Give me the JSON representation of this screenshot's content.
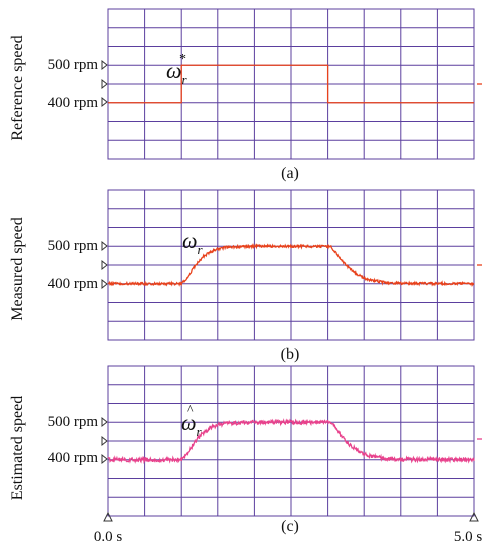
{
  "colors": {
    "grid": "#5b3f9e",
    "reference": "#e8421c",
    "measured": "#e8421c",
    "estimated": "#e8428c"
  },
  "chart_data": [
    {
      "type": "line",
      "panel_label": "(a)",
      "ylabel": "Reference speed",
      "ytick_labels": [
        "500 rpm",
        "400 rpm"
      ],
      "yticks": [
        500,
        400
      ],
      "xlim": [
        0,
        5
      ],
      "ylim": [
        250,
        650
      ],
      "series": [
        {
          "name": "ω*r",
          "symbol": "ω",
          "superscript": "*",
          "subscript": "r",
          "x": [
            0,
            1.0,
            1.0,
            3.0,
            3.0,
            5.0
          ],
          "y": [
            400,
            400,
            500,
            500,
            400,
            400
          ]
        }
      ]
    },
    {
      "type": "line",
      "panel_label": "(b)",
      "ylabel": "Measured speed",
      "ytick_labels": [
        "500 rpm",
        "400 rpm"
      ],
      "yticks": [
        500,
        400
      ],
      "xlim": [
        0,
        5
      ],
      "ylim": [
        250,
        650
      ],
      "series": [
        {
          "name": "ωr",
          "symbol": "ω",
          "subscript": "r",
          "x": [
            0,
            1.0,
            1.1,
            1.2,
            1.3,
            1.4,
            1.5,
            1.6,
            1.8,
            2.0,
            2.5,
            3.0,
            3.05,
            3.1,
            3.2,
            3.3,
            3.4,
            3.5,
            3.6,
            3.8,
            4.0,
            5.0
          ],
          "y": [
            400,
            400,
            420,
            450,
            472,
            485,
            493,
            497,
            499,
            500,
            500,
            500,
            498,
            485,
            462,
            441,
            426,
            415,
            409,
            403,
            401,
            400
          ]
        }
      ]
    },
    {
      "type": "line",
      "panel_label": "(c)",
      "ylabel": "Estimated speed",
      "ytick_labels": [
        "500 rpm",
        "400 rpm"
      ],
      "yticks": [
        500,
        400
      ],
      "xlim": [
        0,
        5
      ],
      "ylim": [
        250,
        650
      ],
      "xtick_labels": [
        "0.0 s",
        "5.0 s"
      ],
      "xticks": [
        0,
        5
      ],
      "series": [
        {
          "name": "ω̂r",
          "symbol": "ω",
          "accent": "^",
          "subscript": "r",
          "x": [
            0,
            1.0,
            1.1,
            1.2,
            1.3,
            1.4,
            1.5,
            1.6,
            1.8,
            2.0,
            2.5,
            3.0,
            3.05,
            3.1,
            3.2,
            3.3,
            3.4,
            3.5,
            3.6,
            3.8,
            4.0,
            5.0
          ],
          "y": [
            400,
            400,
            420,
            450,
            472,
            485,
            493,
            497,
            499,
            500,
            500,
            500,
            498,
            485,
            462,
            441,
            426,
            415,
            409,
            403,
            401,
            400
          ]
        }
      ]
    }
  ]
}
